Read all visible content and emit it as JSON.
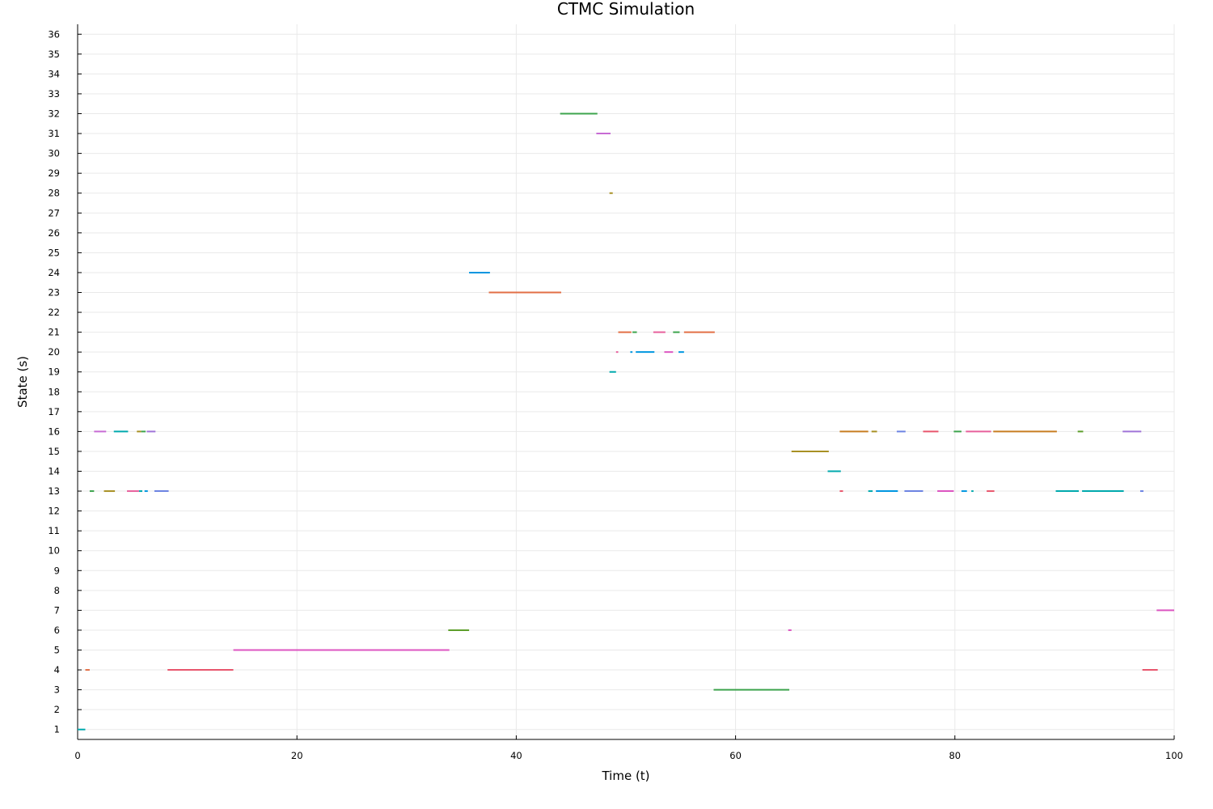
{
  "chart_data": {
    "type": "line",
    "title": "CTMC Simulation",
    "xlabel": "Time (t)",
    "ylabel": "State (s)",
    "xlim": [
      0,
      100
    ],
    "ylim": [
      0.5,
      36.5
    ],
    "xticks": [
      0,
      20,
      40,
      60,
      80,
      100
    ],
    "yticks": [
      1,
      2,
      3,
      4,
      5,
      6,
      7,
      8,
      9,
      10,
      11,
      12,
      13,
      14,
      15,
      16,
      17,
      18,
      19,
      20,
      21,
      22,
      23,
      24,
      25,
      26,
      27,
      28,
      29,
      30,
      31,
      32,
      33,
      34,
      35,
      36
    ],
    "grid": true,
    "legend": "none",
    "segments": [
      {
        "state": 1,
        "t0": 0.0,
        "t1": 0.7,
        "color": "#00a9ad"
      },
      {
        "state": 4,
        "t0": 0.7,
        "t1": 1.1,
        "color": "#e26f46"
      },
      {
        "state": 13,
        "t0": 1.1,
        "t1": 1.5,
        "color": "#3da44d"
      },
      {
        "state": 16,
        "t0": 1.5,
        "t1": 2.6,
        "color": "#c76bd4"
      },
      {
        "state": 13,
        "t0": 2.4,
        "t1": 3.4,
        "color": "#a89024"
      },
      {
        "state": 16,
        "t0": 3.3,
        "t1": 4.6,
        "color": "#00a9ad"
      },
      {
        "state": 13,
        "t0": 4.5,
        "t1": 5.6,
        "color": "#e7609c"
      },
      {
        "state": 16,
        "t0": 5.4,
        "t1": 5.8,
        "color": "#a89024"
      },
      {
        "state": 13,
        "t0": 5.6,
        "t1": 5.9,
        "color": "#00a9ad"
      },
      {
        "state": 16,
        "t0": 5.8,
        "t1": 6.2,
        "color": "#3da44d"
      },
      {
        "state": 13,
        "t0": 6.1,
        "t1": 6.4,
        "color": "#0096e0"
      },
      {
        "state": 16,
        "t0": 6.3,
        "t1": 7.1,
        "color": "#a074d8"
      },
      {
        "state": 13,
        "t0": 7.0,
        "t1": 8.3,
        "color": "#6c83e2"
      },
      {
        "state": 4,
        "t0": 8.2,
        "t1": 14.2,
        "color": "#e8566d"
      },
      {
        "state": 5,
        "t0": 14.2,
        "t1": 33.9,
        "color": "#dc55c1"
      },
      {
        "state": 6,
        "t0": 33.8,
        "t1": 35.7,
        "color": "#5d9e2b"
      },
      {
        "state": 24,
        "t0": 35.7,
        "t1": 37.6,
        "color": "#0096e0"
      },
      {
        "state": 23,
        "t0": 37.5,
        "t1": 44.1,
        "color": "#e26f46"
      },
      {
        "state": 32,
        "t0": 44.0,
        "t1": 47.4,
        "color": "#3da44d"
      },
      {
        "state": 31,
        "t0": 47.3,
        "t1": 48.6,
        "color": "#c76bd4"
      },
      {
        "state": 28,
        "t0": 48.5,
        "t1": 48.8,
        "color": "#a89024"
      },
      {
        "state": 19,
        "t0": 48.5,
        "t1": 49.1,
        "color": "#00a9ad"
      },
      {
        "state": 20,
        "t0": 49.1,
        "t1": 49.3,
        "color": "#e7609c"
      },
      {
        "state": 21,
        "t0": 49.3,
        "t1": 50.5,
        "color": "#e26f46"
      },
      {
        "state": 20,
        "t0": 50.4,
        "t1": 50.6,
        "color": "#0096e0"
      },
      {
        "state": 21,
        "t0": 50.6,
        "t1": 51.0,
        "color": "#3da44d"
      },
      {
        "state": 20,
        "t0": 50.9,
        "t1": 52.6,
        "color": "#0096e0"
      },
      {
        "state": 21,
        "t0": 52.5,
        "t1": 53.6,
        "color": "#e7609c"
      },
      {
        "state": 20,
        "t0": 53.5,
        "t1": 54.3,
        "color": "#dc55c1"
      },
      {
        "state": 21,
        "t0": 54.3,
        "t1": 54.9,
        "color": "#3da44d"
      },
      {
        "state": 20,
        "t0": 54.8,
        "t1": 55.3,
        "color": "#0096e0"
      },
      {
        "state": 21,
        "t0": 55.3,
        "t1": 58.1,
        "color": "#e26f46"
      },
      {
        "state": 3,
        "t0": 58.0,
        "t1": 64.9,
        "color": "#3da44d"
      },
      {
        "state": 6,
        "t0": 64.8,
        "t1": 65.1,
        "color": "#dc55c1"
      },
      {
        "state": 15,
        "t0": 65.1,
        "t1": 68.5,
        "color": "#a89024"
      },
      {
        "state": 14,
        "t0": 68.4,
        "t1": 69.6,
        "color": "#00a9ad"
      },
      {
        "state": 13,
        "t0": 69.5,
        "t1": 69.8,
        "color": "#e8566d"
      },
      {
        "state": 16,
        "t0": 69.5,
        "t1": 72.1,
        "color": "#c87d21"
      },
      {
        "state": 13,
        "t0": 72.1,
        "t1": 72.5,
        "color": "#00a9ad"
      },
      {
        "state": 16,
        "t0": 72.4,
        "t1": 72.9,
        "color": "#a89024"
      },
      {
        "state": 13,
        "t0": 72.8,
        "t1": 74.8,
        "color": "#0096e0"
      },
      {
        "state": 16,
        "t0": 74.7,
        "t1": 75.5,
        "color": "#6c83e2"
      },
      {
        "state": 13,
        "t0": 75.4,
        "t1": 77.1,
        "color": "#6c83e2"
      },
      {
        "state": 16,
        "t0": 77.1,
        "t1": 78.5,
        "color": "#e8566d"
      },
      {
        "state": 13,
        "t0": 78.4,
        "t1": 79.9,
        "color": "#dc55c1"
      },
      {
        "state": 16,
        "t0": 79.9,
        "t1": 80.6,
        "color": "#3da44d"
      },
      {
        "state": 13,
        "t0": 80.6,
        "t1": 81.1,
        "color": "#0096e0"
      },
      {
        "state": 16,
        "t0": 81.0,
        "t1": 83.3,
        "color": "#e7609c"
      },
      {
        "state": 13,
        "t0": 81.5,
        "t1": 81.7,
        "color": "#00a9ad"
      },
      {
        "state": 13,
        "t0": 82.9,
        "t1": 83.6,
        "color": "#e8566d"
      },
      {
        "state": 16,
        "t0": 83.5,
        "t1": 89.3,
        "color": "#c87d21"
      },
      {
        "state": 13,
        "t0": 89.2,
        "t1": 91.3,
        "color": "#00a9ad"
      },
      {
        "state": 16,
        "t0": 91.2,
        "t1": 91.7,
        "color": "#5d9e2b"
      },
      {
        "state": 13,
        "t0": 91.6,
        "t1": 95.4,
        "color": "#00a9ad"
      },
      {
        "state": 16,
        "t0": 95.3,
        "t1": 97.0,
        "color": "#a074d8"
      },
      {
        "state": 13,
        "t0": 96.9,
        "t1": 97.2,
        "color": "#6c83e2"
      },
      {
        "state": 4,
        "t0": 97.1,
        "t1": 98.5,
        "color": "#e8566d"
      },
      {
        "state": 7,
        "t0": 98.4,
        "t1": 100.0,
        "color": "#dc55c1"
      }
    ]
  }
}
